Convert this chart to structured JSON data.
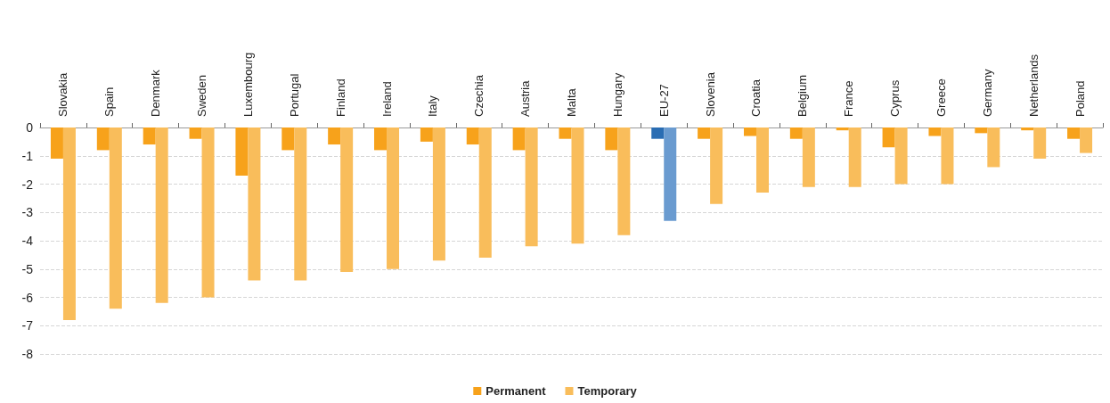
{
  "chart_data": {
    "type": "bar",
    "categories": [
      "Slovakia",
      "Spain",
      "Denmark",
      "Sweden",
      "Luxembourg",
      "Portugal",
      "Finland",
      "Ireland",
      "Italy",
      "Czechia",
      "Austria",
      "Malta",
      "Hungary",
      "EU-27",
      "Slovenia",
      "Croatia",
      "Belgium",
      "France",
      "Cyprus",
      "Greece",
      "Germany",
      "Netherlands",
      "Poland"
    ],
    "series": [
      {
        "name": "Permanent",
        "color": "#f7a21b",
        "colors": [
          "#f7a21b",
          "#f7a21b",
          "#f7a21b",
          "#f7a21b",
          "#f7a21b",
          "#f7a21b",
          "#f7a21b",
          "#f7a21b",
          "#f7a21b",
          "#f7a21b",
          "#f7a21b",
          "#f7a21b",
          "#f7a21b",
          "#2a6db3",
          "#f7a21b",
          "#f7a21b",
          "#f7a21b",
          "#f7a21b",
          "#f7a21b",
          "#f7a21b",
          "#f7a21b",
          "#f7a21b",
          "#f7a21b"
        ],
        "values": [
          -1.1,
          -0.8,
          -0.6,
          -0.4,
          -1.7,
          -0.8,
          -0.6,
          -0.8,
          -0.5,
          -0.6,
          -0.8,
          -0.4,
          -0.8,
          -0.4,
          -0.4,
          -0.3,
          -0.4,
          -0.1,
          -0.7,
          -0.3,
          -0.2,
          -0.1,
          -0.4
        ]
      },
      {
        "name": "Temporary",
        "color": "#f9bd5b",
        "colors": [
          "#f9bd5b",
          "#f9bd5b",
          "#f9bd5b",
          "#f9bd5b",
          "#f9bd5b",
          "#f9bd5b",
          "#f9bd5b",
          "#f9bd5b",
          "#f9bd5b",
          "#f9bd5b",
          "#f9bd5b",
          "#f9bd5b",
          "#f9bd5b",
          "#6a9bd0",
          "#f9bd5b",
          "#f9bd5b",
          "#f9bd5b",
          "#f9bd5b",
          "#f9bd5b",
          "#f9bd5b",
          "#f9bd5b",
          "#f9bd5b",
          "#f9bd5b"
        ],
        "values": [
          -6.8,
          -6.4,
          -6.2,
          -6.0,
          -5.4,
          -5.4,
          -5.1,
          -5.0,
          -4.7,
          -4.6,
          -4.2,
          -4.1,
          -3.8,
          -3.3,
          -2.7,
          -2.3,
          -2.1,
          -2.1,
          -2.0,
          -2.0,
          -1.4,
          -1.1,
          -0.9
        ]
      }
    ],
    "ylim": [
      -8,
      0
    ],
    "yticks": [
      0,
      -1,
      -2,
      -3,
      -4,
      -5,
      -6,
      -7,
      -8
    ],
    "grid": "y",
    "legend": "bottom"
  }
}
